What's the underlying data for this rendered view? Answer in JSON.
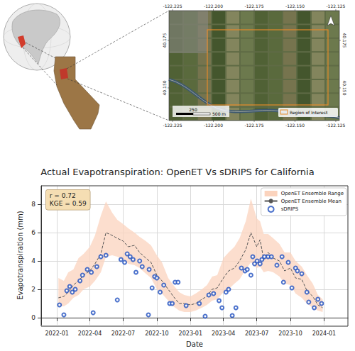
{
  "map_panel": {
    "lon_lim": [
      -122.2272,
      -122.1228
    ],
    "lat_lim": [
      40.1328,
      40.1907
    ],
    "lon_ticks": [
      {
        "value": -122.225,
        "label": "-122.225"
      },
      {
        "value": -122.2,
        "label": "-122.200"
      },
      {
        "value": -122.175,
        "label": "-122.175"
      },
      {
        "value": -122.15,
        "label": "-122.150"
      },
      {
        "value": -122.125,
        "label": "-122.125"
      }
    ],
    "lat_ticks": [
      {
        "value": 40.175,
        "label": "40.175"
      },
      {
        "value": 40.15,
        "label": "40.150"
      }
    ],
    "legend_label": "Region of Interest",
    "scale_bar_labels": [
      "250",
      "500 m"
    ]
  },
  "chart_data": {
    "type": "line",
    "title": "Actual Evapotranspiration: OpenET Vs sDRIPS for California",
    "xlabel": "Date",
    "ylabel": "Evapotranspiration (mm)",
    "xlim": [
      "2021-11-19",
      "2024-03-06"
    ],
    "xticks": [
      "2022-01",
      "2022-04",
      "2022-07",
      "2022-10",
      "2023-01",
      "2023-04",
      "2023-07",
      "2023-10",
      "2024-01"
    ],
    "ylim": [
      -0.5,
      9.3
    ],
    "yticks": [
      0,
      2,
      4,
      6,
      8
    ],
    "grid": true,
    "legend": "upper right",
    "annotations": [
      "r = 0.72",
      "KGE = 0.59"
    ],
    "series": [
      {
        "name": "OpenET Ensemble Range",
        "type": "band",
        "color": "#fbd3bd",
        "x": [
          "2022-01-05",
          "2022-01-20",
          "2022-02-01",
          "2022-02-15",
          "2022-03-01",
          "2022-03-15",
          "2022-04-01",
          "2022-04-15",
          "2022-05-01",
          "2022-05-15",
          "2022-06-01",
          "2022-06-15",
          "2022-07-01",
          "2022-07-15",
          "2022-08-01",
          "2022-08-15",
          "2022-09-01",
          "2022-09-15",
          "2022-10-01",
          "2022-10-15",
          "2022-11-01",
          "2022-11-15",
          "2022-12-01",
          "2022-12-15",
          "2023-01-01",
          "2023-01-15",
          "2023-02-01",
          "2023-02-15",
          "2023-03-01",
          "2023-03-15",
          "2023-04-01",
          "2023-04-15",
          "2023-05-01",
          "2023-05-15",
          "2023-06-01",
          "2023-06-15",
          "2023-07-01",
          "2023-07-10",
          "2023-07-20",
          "2023-08-01",
          "2023-08-15",
          "2023-09-01",
          "2023-09-15",
          "2023-10-01",
          "2023-10-15",
          "2023-11-01",
          "2023-11-15",
          "2023-12-01",
          "2023-12-15",
          "2023-12-28"
        ],
        "low": [
          0.8,
          0.8,
          1.0,
          1.4,
          1.6,
          2.0,
          2.2,
          2.6,
          3.2,
          4.3,
          4.4,
          4.3,
          4.1,
          3.8,
          3.7,
          3.5,
          3.1,
          2.8,
          2.0,
          1.7,
          1.2,
          0.8,
          0.5,
          0.4,
          0.4,
          0.5,
          0.7,
          0.9,
          1.2,
          1.3,
          1.8,
          2.0,
          2.4,
          2.7,
          3.4,
          3.9,
          3.5,
          3.6,
          3.2,
          3.3,
          3.2,
          2.9,
          2.4,
          2.3,
          1.7,
          1.4,
          1.0,
          0.7,
          0.5,
          0.4
        ],
        "high": [
          2.8,
          2.6,
          3.2,
          3.4,
          4.2,
          4.5,
          5.0,
          5.8,
          7.2,
          8.2,
          7.4,
          6.9,
          6.6,
          6.3,
          6.0,
          5.7,
          5.4,
          5.1,
          4.4,
          3.9,
          2.8,
          2.3,
          1.8,
          1.6,
          1.5,
          1.7,
          2.0,
          2.3,
          2.9,
          3.0,
          4.2,
          4.6,
          5.0,
          5.6,
          6.8,
          8.4,
          7.0,
          6.8,
          5.9,
          5.9,
          5.6,
          5.2,
          4.6,
          4.6,
          4.0,
          3.6,
          3.0,
          2.4,
          1.6,
          1.3
        ]
      },
      {
        "name": "OpenET Ensemble Mean",
        "type": "line",
        "line_style": "dashed",
        "color": "#555555",
        "x": [
          "2022-01-05",
          "2022-01-20",
          "2022-02-01",
          "2022-02-15",
          "2022-03-01",
          "2022-03-15",
          "2022-04-01",
          "2022-04-15",
          "2022-05-01",
          "2022-05-15",
          "2022-06-01",
          "2022-06-15",
          "2022-07-01",
          "2022-07-15",
          "2022-08-01",
          "2022-08-15",
          "2022-09-01",
          "2022-09-15",
          "2022-10-01",
          "2022-10-15",
          "2022-11-01",
          "2022-11-15",
          "2022-12-01",
          "2022-12-15",
          "2023-01-01",
          "2023-01-15",
          "2023-02-01",
          "2023-02-15",
          "2023-03-01",
          "2023-03-15",
          "2023-04-01",
          "2023-04-15",
          "2023-05-01",
          "2023-05-15",
          "2023-06-01",
          "2023-06-15",
          "2023-07-01",
          "2023-07-10",
          "2023-07-20",
          "2023-08-01",
          "2023-08-15",
          "2023-09-01",
          "2023-09-15",
          "2023-10-01",
          "2023-10-15",
          "2023-11-01",
          "2023-11-15",
          "2023-12-01",
          "2023-12-15",
          "2023-12-28"
        ],
        "values": [
          1.4,
          1.5,
          1.8,
          2.3,
          2.6,
          3.0,
          3.3,
          3.8,
          4.5,
          6.0,
          5.8,
          5.6,
          5.4,
          5.0,
          5.1,
          4.6,
          4.2,
          3.9,
          3.0,
          2.6,
          2.0,
          1.5,
          1.0,
          1.0,
          0.9,
          1.0,
          1.3,
          1.5,
          2.0,
          2.1,
          2.8,
          3.3,
          3.5,
          4.0,
          4.8,
          6.0,
          5.0,
          5.5,
          4.1,
          4.6,
          4.2,
          4.0,
          3.3,
          3.5,
          2.8,
          2.7,
          1.9,
          1.5,
          0.9,
          0.7
        ]
      },
      {
        "name": "sDRIPS",
        "type": "scatter",
        "marker": "open_circle",
        "color": "#1f4fbf",
        "x": [
          "2022-01-08",
          "2022-01-20",
          "2022-01-28",
          "2022-02-05",
          "2022-02-12",
          "2022-02-20",
          "2022-03-05",
          "2022-03-12",
          "2022-03-25",
          "2022-04-05",
          "2022-04-10",
          "2022-04-20",
          "2022-05-01",
          "2022-05-15",
          "2022-06-15",
          "2022-06-25",
          "2022-07-05",
          "2022-07-12",
          "2022-07-20",
          "2022-07-28",
          "2022-08-05",
          "2022-08-15",
          "2022-08-22",
          "2022-09-08",
          "2022-09-10",
          "2022-09-18",
          "2022-09-25",
          "2022-10-01",
          "2022-10-10",
          "2022-10-20",
          "2022-11-05",
          "2022-11-12",
          "2022-11-20",
          "2022-11-28",
          "2022-12-20",
          "2023-01-25",
          "2023-02-10",
          "2023-02-20",
          "2023-03-05",
          "2023-03-20",
          "2023-03-28",
          "2023-04-08",
          "2023-04-15",
          "2023-04-25",
          "2023-05-05",
          "2023-05-20",
          "2023-05-30",
          "2023-06-05",
          "2023-06-15",
          "2023-06-20",
          "2023-06-25",
          "2023-07-02",
          "2023-07-10",
          "2023-07-15",
          "2023-07-22",
          "2023-08-01",
          "2023-08-10",
          "2023-08-25",
          "2023-09-08",
          "2023-09-12",
          "2023-09-25",
          "2023-10-05",
          "2023-10-15",
          "2023-10-20",
          "2023-11-01",
          "2023-11-15",
          "2023-11-20",
          "2023-12-05",
          "2023-12-15",
          "2023-12-25"
        ],
        "values": [
          0.9,
          0.2,
          1.9,
          2.2,
          1.8,
          2.0,
          2.6,
          3.0,
          3.4,
          3.2,
          0.35,
          3.6,
          4.3,
          4.4,
          1.25,
          4.1,
          3.9,
          4.5,
          4.3,
          4.1,
          3.2,
          4.0,
          3.6,
          0.2,
          3.4,
          2.1,
          2.9,
          2.8,
          1.8,
          2.3,
          1.0,
          1.0,
          2.5,
          2.5,
          0.85,
          1.0,
          0.1,
          1.6,
          1.7,
          1.2,
          0.7,
          1.8,
          2.0,
          0.15,
          0.7,
          3.5,
          3.3,
          3.4,
          3.0,
          4.3,
          3.8,
          4.0,
          3.8,
          4.1,
          4.3,
          4.3,
          4.3,
          3.7,
          4.3,
          2.5,
          3.9,
          2.1,
          3.5,
          3.3,
          3.1,
          1.8,
          1.1,
          0.7,
          1.3,
          1.0
        ]
      }
    ]
  }
}
